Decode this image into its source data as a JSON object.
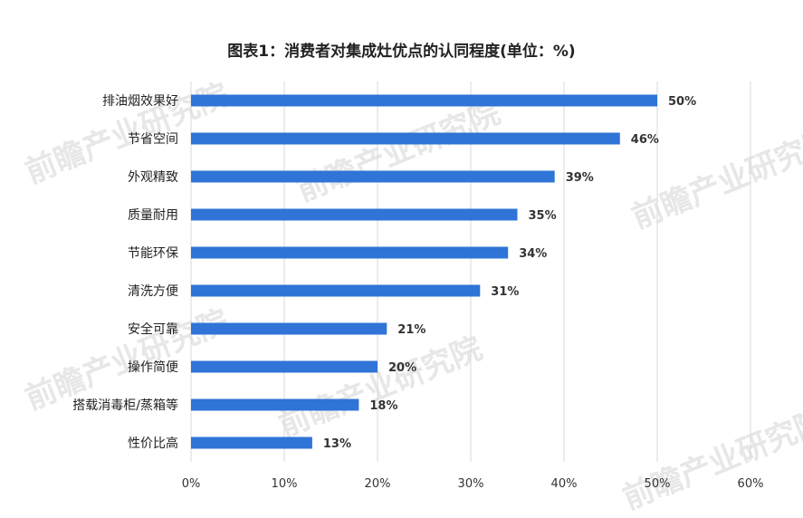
{
  "title": "图表1：消费者对集成灶优点的认同程度(单位：%)",
  "watermark": "前瞻产业研究院",
  "chart_data": {
    "type": "bar",
    "orientation": "horizontal",
    "title": "图表1：消费者对集成灶优点的认同程度(单位：%)",
    "categories": [
      "排油烟效果好",
      "节省空间",
      "外观精致",
      "质量耐用",
      "节能环保",
      "清洗方便",
      "安全可靠",
      "操作简便",
      "搭载消毒柜/蒸箱等",
      "性价比高"
    ],
    "values": [
      50,
      46,
      39,
      35,
      34,
      31,
      21,
      20,
      18,
      13
    ],
    "value_labels": [
      "50%",
      "46%",
      "39%",
      "35%",
      "34%",
      "31%",
      "21%",
      "20%",
      "18%",
      "13%"
    ],
    "xlim": [
      0,
      60
    ],
    "xticks": [
      0,
      10,
      20,
      30,
      40,
      50,
      60
    ],
    "xtick_labels": [
      "0%",
      "10%",
      "20%",
      "30%",
      "40%",
      "50%",
      "60%"
    ],
    "xlabel": "",
    "ylabel": "",
    "grid": true,
    "bar_color": "#2f74d6",
    "grid_color": "#d9d9d9"
  }
}
